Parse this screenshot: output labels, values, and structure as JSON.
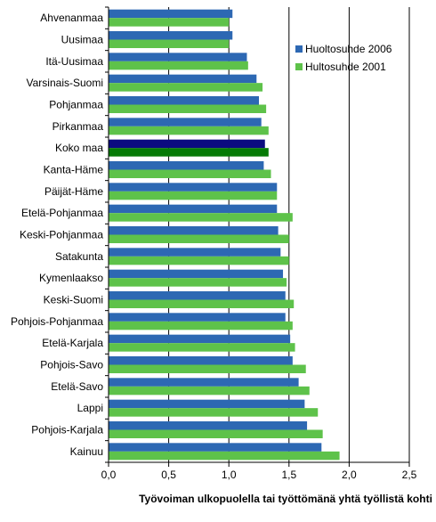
{
  "chart_data": {
    "type": "bar",
    "orientation": "horizontal",
    "categories": [
      "Ahvenanmaa",
      "Uusimaa",
      "Itä-Uusimaa",
      "Varsinais-Suomi",
      "Pohjanmaa",
      "Pirkanmaa",
      "Koko maa",
      "Kanta-Häme",
      "Päijät-Häme",
      "Etelä-Pohjanmaa",
      "Keski-Pohjanmaa",
      "Satakunta",
      "Kymenlaakso",
      "Keski-Suomi",
      "Pohjois-Pohjanmaa",
      "Etelä-Karjala",
      "Pohjois-Savo",
      "Etelä-Savo",
      "Lappi",
      "Pohjois-Karjala",
      "Kainuu"
    ],
    "highlight_category": "Koko maa",
    "series": [
      {
        "name": "Huoltosuhde 2006",
        "color": "#2d68b3",
        "highlight_color": "#0b0b80",
        "values": [
          1.03,
          1.03,
          1.15,
          1.23,
          1.25,
          1.27,
          1.3,
          1.29,
          1.4,
          1.4,
          1.41,
          1.43,
          1.45,
          1.47,
          1.47,
          1.51,
          1.53,
          1.58,
          1.63,
          1.65,
          1.77
        ]
      },
      {
        "name": "Hultosuhde 2001",
        "color": "#5ec24a",
        "highlight_color": "#067a06",
        "values": [
          1.0,
          1.0,
          1.16,
          1.28,
          1.31,
          1.33,
          1.33,
          1.35,
          1.4,
          1.53,
          1.5,
          1.5,
          1.48,
          1.54,
          1.53,
          1.55,
          1.64,
          1.67,
          1.74,
          1.78,
          1.92
        ]
      }
    ],
    "x_ticks": [
      "0,0",
      "0,5",
      "1,0",
      "1,5",
      "2,0",
      "2,5"
    ],
    "x_tick_values": [
      0,
      0.5,
      1.0,
      1.5,
      2.0,
      2.5
    ],
    "xlim": [
      0,
      2.5
    ],
    "xlabel": "Työvoiman ulkopuolella tai työttömänä yhtä työllistä kohti",
    "ylabel": "",
    "title": "",
    "grid": "vertical major gridlines",
    "legend_position": "top-right"
  }
}
